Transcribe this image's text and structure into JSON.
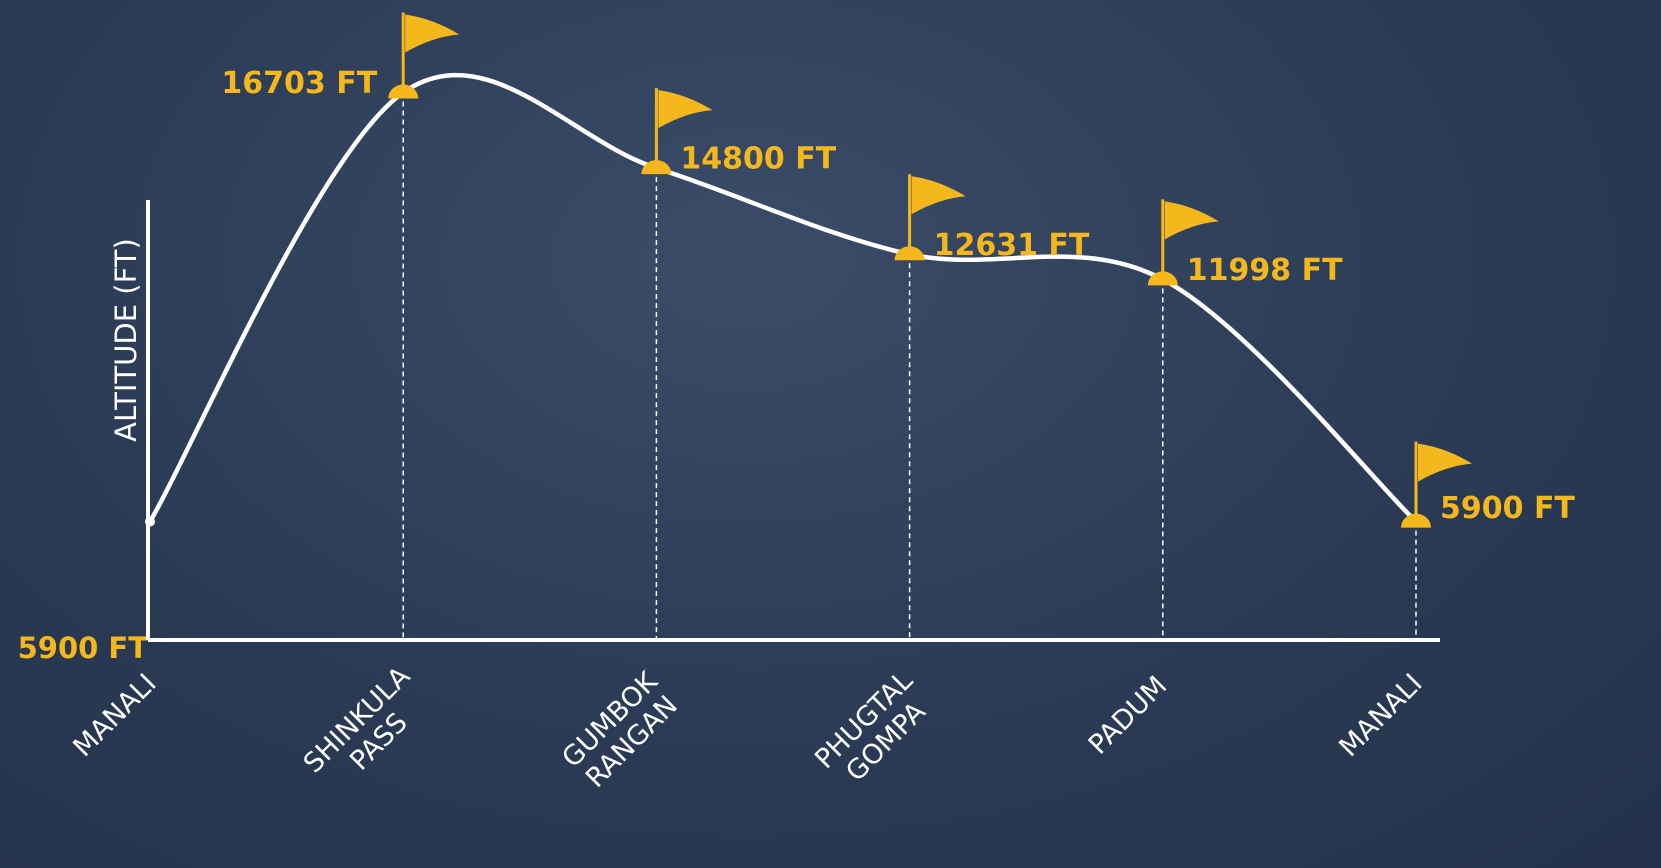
{
  "chart_data": {
    "type": "line",
    "categories": [
      "MANALI",
      "SHINKULA PASS",
      "GUMBOK RANGAN",
      "PHUGTAL GOMPA",
      "PADUM",
      "MANALI"
    ],
    "values": [
      5900,
      16703,
      14800,
      12631,
      11998,
      5900
    ],
    "value_labels": [
      null,
      "16703 FT",
      "14800 FT",
      "12631 FT",
      "11998 FT",
      "5900 FT"
    ],
    "y_axis_label": "ALTITUDE (FT)",
    "y_base_label": "5900 FT",
    "ylim": [
      2920,
      18780
    ],
    "color": "#ffffff",
    "marker_color": "#f5b81c"
  }
}
